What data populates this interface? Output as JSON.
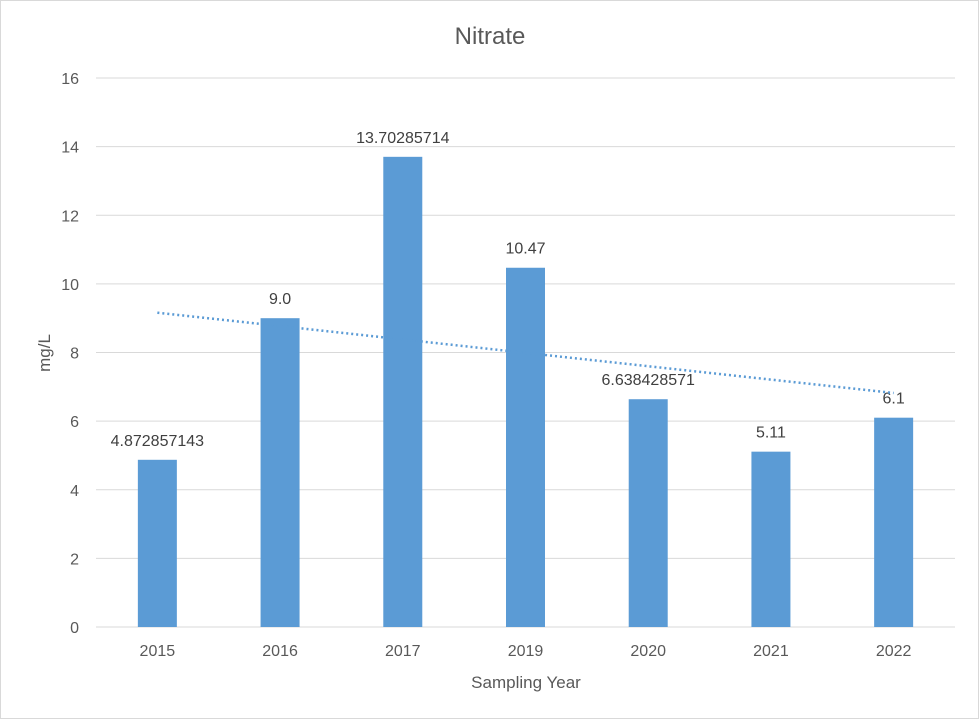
{
  "chart_data": {
    "type": "bar",
    "title": "Nitrate",
    "xlabel": "Sampling Year",
    "ylabel": "mg/L",
    "categories": [
      "2015",
      "2016",
      "2017",
      "2019",
      "2020",
      "2021",
      "2022"
    ],
    "values": [
      4.872857143,
      9.0,
      13.70285714,
      10.47,
      6.638428571,
      5.11,
      6.1
    ],
    "data_labels": [
      "4.872857143",
      "9.0",
      "13.70285714",
      "10.47",
      "6.638428571",
      "5.11",
      "6.1"
    ],
    "ylim": [
      0,
      16
    ],
    "yticks": [
      "0",
      "2",
      "4",
      "6",
      "8",
      "10",
      "12",
      "14",
      "16"
    ],
    "grid": true,
    "legend": "none",
    "trendline": {
      "type": "linear",
      "style": "dotted",
      "start": 9.16,
      "end": 6.82
    },
    "colors": {
      "bar": "#5b9bd5",
      "trendline": "#5b9bd5",
      "grid": "#d9d9d9",
      "text": "#595959"
    }
  }
}
